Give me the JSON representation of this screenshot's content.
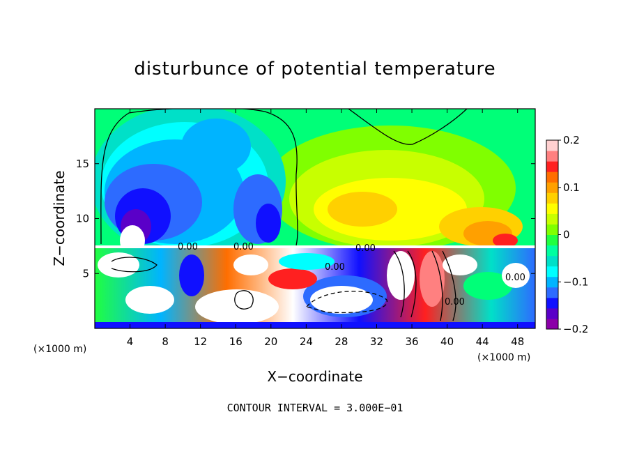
{
  "chart_data": {
    "type": "heatmap",
    "title": "disturbunce of potential temperature",
    "xlabel": "X−coordinate",
    "ylabel": "Z−coordinate",
    "x_unit_left": "(×1000 m)",
    "x_unit_right": "(×1000 m)",
    "xlim": [
      0,
      50
    ],
    "ylim": [
      0,
      20
    ],
    "x_ticks": [
      4,
      8,
      12,
      16,
      20,
      24,
      28,
      32,
      36,
      40,
      44,
      48
    ],
    "y_ticks": [
      5,
      10,
      15
    ],
    "colorbar": {
      "min": -0.2,
      "max": 0.2,
      "tick_values": [
        0.2,
        0.1,
        0,
        -0.1,
        -0.2
      ],
      "tick_labels": [
        "0.2",
        "0.1",
        "0",
        "−0.1",
        "−0.2"
      ],
      "colors": [
        "#8b00a8",
        "#5a00c8",
        "#1010ff",
        "#2d6bff",
        "#00b4ff",
        "#00ffff",
        "#00e0c8",
        "#00ffa0",
        "#20ff40",
        "#80ff00",
        "#c8ff00",
        "#ffff00",
        "#ffd000",
        "#ffa000",
        "#ff6e00",
        "#ff2020",
        "#ff8080",
        "#ffd0d0"
      ]
    },
    "contour_labels": [
      "0.00",
      "0.00",
      "0.00",
      "0.00",
      "0.00",
      "0.00"
    ],
    "contour_interval": "CONTOUR INTERVAL = 3.000E−01"
  }
}
